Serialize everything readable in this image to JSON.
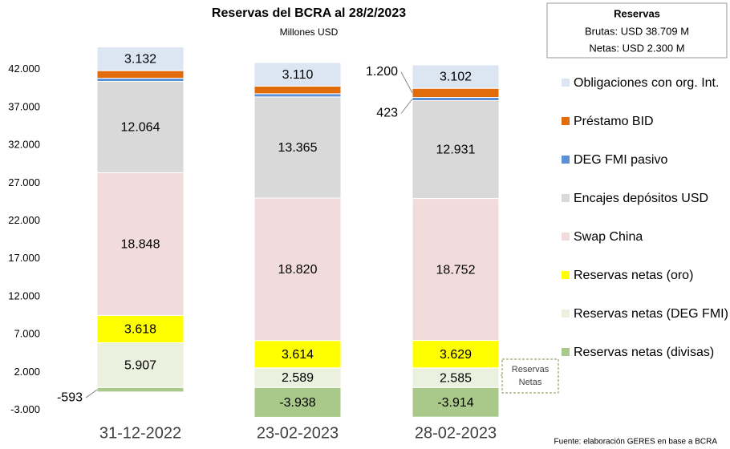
{
  "chart_data": {
    "type": "stacked-bar",
    "title": "Reservas del BCRA al 28/2/2023",
    "subtitle": "Millones USD",
    "categories": [
      "31-12-2022",
      "23-02-2023",
      "28-02-2023"
    ],
    "series": [
      {
        "name": "Reservas netas (divisas)",
        "color": "#a9c98a",
        "values": [
          -593,
          -3938,
          -3914
        ],
        "value_labels": [
          "-593",
          "-3.938",
          "-3.914"
        ]
      },
      {
        "name": "Reservas netas (DEG FMI)",
        "color": "#ebf1de",
        "values": [
          5907,
          2589,
          2585
        ],
        "value_labels": [
          "5.907",
          "2.589",
          "2.585"
        ]
      },
      {
        "name": "Reservas netas (oro)",
        "color": "#ffff00",
        "values": [
          3618,
          3614,
          3629
        ],
        "value_labels": [
          "3.618",
          "3.614",
          "3.629"
        ]
      },
      {
        "name": "Swap China",
        "color": "#f2dcdb",
        "values": [
          18848,
          18820,
          18752
        ],
        "value_labels": [
          "18.848",
          "18.820",
          "18.752"
        ]
      },
      {
        "name": "Encajes depósitos USD",
        "color": "#d9d9d9",
        "values": [
          12064,
          13365,
          12931
        ],
        "value_labels": [
          "12.064",
          "13.365",
          "12.931"
        ]
      },
      {
        "name": "DEG FMI pasivo",
        "color": "#5b8fd6",
        "values": [
          420,
          420,
          423
        ],
        "value_labels": [
          null,
          null,
          "423"
        ]
      },
      {
        "name": "Préstamo BID",
        "color": "#e26b0a",
        "values": [
          1000,
          1000,
          1200
        ],
        "value_labels": [
          null,
          null,
          "1.200"
        ]
      },
      {
        "name": "Obligaciones con org. Int.",
        "color": "#dce6f2",
        "values": [
          3132,
          3110,
          3102
        ],
        "value_labels": [
          "3.132",
          "3.110",
          "3.102"
        ]
      }
    ],
    "ylim": [
      -4000,
      46000
    ],
    "yticks": [
      {
        "value": -3000,
        "label": "-3.000"
      },
      {
        "value": 2000,
        "label": "2.000"
      },
      {
        "value": 7000,
        "label": "7.000"
      },
      {
        "value": 12000,
        "label": "12.000"
      },
      {
        "value": 17000,
        "label": "17.000"
      },
      {
        "value": 22000,
        "label": "22.000"
      },
      {
        "value": 27000,
        "label": "27.000"
      },
      {
        "value": 32000,
        "label": "32.000"
      },
      {
        "value": 37000,
        "label": "37.000"
      },
      {
        "value": 42000,
        "label": "42.000"
      }
    ],
    "info_box": {
      "title": "Reservas",
      "lines": [
        "Brutas: USD 38.709 M",
        "Netas: USD 2.300 M"
      ]
    },
    "bracket_label": [
      "Reservas",
      "Netas"
    ],
    "source": "Fuente: elaboración GERES en base a BCRA",
    "legend": "right"
  }
}
